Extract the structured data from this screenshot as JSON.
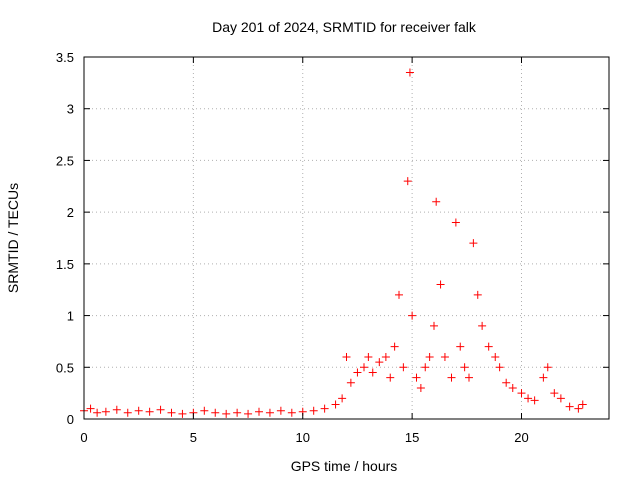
{
  "chart_data": {
    "type": "scatter",
    "title": "Day 201 of 2024, SRMTID for receiver falk",
    "xlabel": "GPS time / hours",
    "ylabel": "SRMTID / TECUs",
    "xlim": [
      0,
      24
    ],
    "ylim": [
      0,
      3.5
    ],
    "x_ticks": [
      0,
      5,
      10,
      15,
      20
    ],
    "x_tick_labels": [
      "0",
      "5",
      "10",
      "15",
      "20"
    ],
    "y_ticks": [
      0,
      0.5,
      1,
      1.5,
      2,
      2.5,
      3,
      3.5
    ],
    "y_tick_labels": [
      "0",
      "0.5",
      "1",
      "1.5",
      "2",
      "2.5",
      "3",
      "3.5"
    ],
    "grid": true,
    "marker": "+",
    "colors": {
      "series": "#ff0000",
      "grid": "#b0b0b0",
      "axis": "#000000"
    },
    "series": [
      {
        "name": "SRMTID",
        "x": [
          0.0,
          0.3,
          0.6,
          1.0,
          1.5,
          2.0,
          2.5,
          3.0,
          3.5,
          4.0,
          4.5,
          5.0,
          5.5,
          6.0,
          6.5,
          7.0,
          7.5,
          8.0,
          8.5,
          9.0,
          9.5,
          10.0,
          10.5,
          11.0,
          11.5,
          11.8,
          12.0,
          12.2,
          12.5,
          12.8,
          13.0,
          13.2,
          13.5,
          13.8,
          14.0,
          14.2,
          14.4,
          14.6,
          14.8,
          14.9,
          15.0,
          15.2,
          15.4,
          15.6,
          15.8,
          16.0,
          16.1,
          16.3,
          16.5,
          16.8,
          17.0,
          17.2,
          17.4,
          17.6,
          17.8,
          18.0,
          18.2,
          18.5,
          18.8,
          19.0,
          19.3,
          19.6,
          20.0,
          20.3,
          20.6,
          21.0,
          21.2,
          21.5,
          21.8,
          22.2,
          22.6,
          22.8
        ],
        "y": [
          0.08,
          0.1,
          0.06,
          0.07,
          0.09,
          0.06,
          0.08,
          0.07,
          0.09,
          0.06,
          0.05,
          0.06,
          0.08,
          0.06,
          0.05,
          0.06,
          0.05,
          0.07,
          0.06,
          0.08,
          0.06,
          0.07,
          0.08,
          0.1,
          0.14,
          0.2,
          0.6,
          0.35,
          0.45,
          0.5,
          0.6,
          0.45,
          0.55,
          0.6,
          0.4,
          0.7,
          1.2,
          0.5,
          2.3,
          3.35,
          1.0,
          0.4,
          0.3,
          0.5,
          0.6,
          0.9,
          2.1,
          1.3,
          0.6,
          0.4,
          1.9,
          0.7,
          0.5,
          0.4,
          1.7,
          1.2,
          0.9,
          0.7,
          0.6,
          0.5,
          0.35,
          0.3,
          0.25,
          0.2,
          0.18,
          0.4,
          0.5,
          0.25,
          0.2,
          0.12,
          0.1,
          0.14
        ]
      }
    ]
  }
}
